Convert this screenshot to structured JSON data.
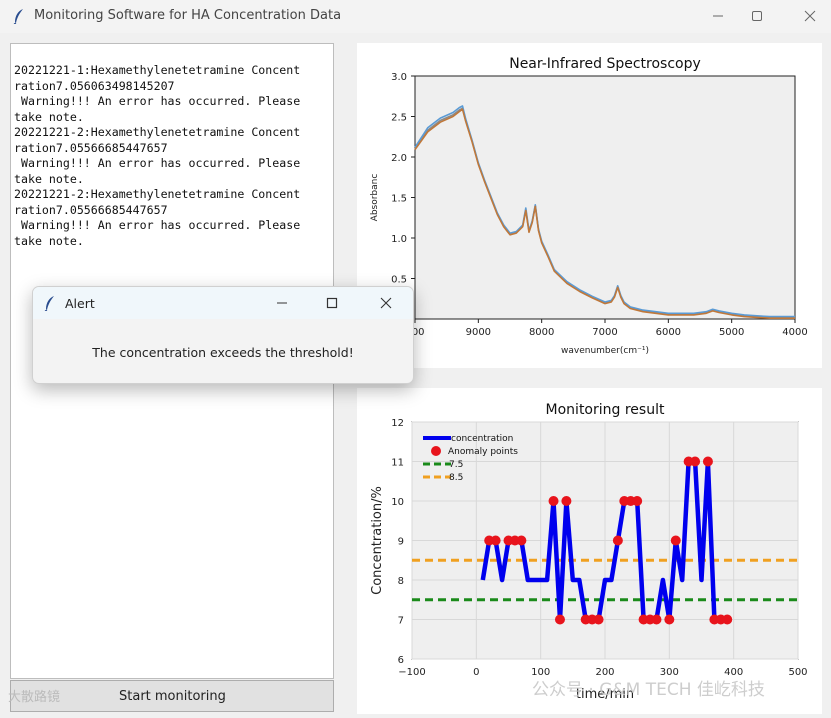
{
  "window": {
    "title": "Monitoring Software for HA Concentration Data",
    "icon": "feather-icon",
    "controls": [
      "minimize-icon",
      "maximize-icon",
      "close-icon"
    ]
  },
  "log": {
    "lines": [
      "20221221-1:Hexamethylenetetramine Concent",
      "ration7.056063498145207",
      " Warning!!! An error has occurred. Please",
      "take note.",
      "20221221-2:Hexamethylenetetramine Concent",
      "ration7.05566685447657",
      " Warning!!! An error has occurred. Please",
      "take note.",
      "20221221-2:Hexamethylenetetramine Concent",
      "ration7.05566685447657",
      " Warning!!! An error has occurred. Please",
      "take note."
    ]
  },
  "start_button": {
    "label": "Start monitoring"
  },
  "alert": {
    "title": "Alert",
    "message": "The concentration exceeds the threshold!"
  },
  "watermarks": {
    "left": "大散路镜",
    "right": "公众号 · G&M TECH 佳屹科技"
  },
  "chart_data": [
    {
      "type": "line",
      "title": "Near-Infrared Spectroscopy",
      "xlabel": "wavenumber(cm⁻¹)",
      "ylabel": "Absorbanc",
      "xlim": [
        10000,
        4000
      ],
      "ylim": [
        0,
        3.0
      ],
      "x_ticks": [
        "000",
        "9000",
        "8000",
        "7000",
        "6000",
        "5000",
        "4000"
      ],
      "y_ticks": [
        "0.5",
        "1.0",
        "1.5",
        "2.0",
        "2.5",
        "3.0"
      ],
      "grid": false,
      "colors": [
        "#8a8a8a",
        "#5b9bd5",
        "#c0783a"
      ],
      "x": [
        10000,
        9800,
        9600,
        9400,
        9300,
        9250,
        9200,
        9100,
        9000,
        8900,
        8800,
        8700,
        8600,
        8500,
        8400,
        8300,
        8250,
        8200,
        8150,
        8100,
        8050,
        8000,
        7900,
        7800,
        7600,
        7400,
        7200,
        7000,
        6900,
        6850,
        6800,
        6750,
        6700,
        6600,
        6400,
        6200,
        6000,
        5800,
        5600,
        5400,
        5300,
        5200,
        5000,
        4800,
        4600,
        4400,
        4200,
        4000
      ],
      "series": [
        {
          "values": [
            2.1,
            2.33,
            2.45,
            2.52,
            2.58,
            2.6,
            2.45,
            2.2,
            1.92,
            1.7,
            1.5,
            1.3,
            1.15,
            1.05,
            1.07,
            1.15,
            1.35,
            1.08,
            1.2,
            1.4,
            1.1,
            0.95,
            0.78,
            0.6,
            0.45,
            0.35,
            0.27,
            0.2,
            0.22,
            0.28,
            0.4,
            0.28,
            0.2,
            0.14,
            0.1,
            0.08,
            0.06,
            0.06,
            0.06,
            0.08,
            0.11,
            0.09,
            0.06,
            0.04,
            0.03,
            0.02,
            0.02,
            0.02
          ]
        },
        {
          "values": [
            2.12,
            2.36,
            2.48,
            2.55,
            2.61,
            2.63,
            2.47,
            2.21,
            1.93,
            1.71,
            1.51,
            1.31,
            1.16,
            1.06,
            1.08,
            1.16,
            1.37,
            1.09,
            1.21,
            1.41,
            1.11,
            0.96,
            0.79,
            0.61,
            0.46,
            0.36,
            0.28,
            0.21,
            0.23,
            0.29,
            0.41,
            0.29,
            0.21,
            0.15,
            0.11,
            0.09,
            0.07,
            0.07,
            0.07,
            0.09,
            0.12,
            0.1,
            0.07,
            0.05,
            0.04,
            0.03,
            0.03,
            0.03
          ]
        },
        {
          "values": [
            2.09,
            2.31,
            2.43,
            2.5,
            2.56,
            2.59,
            2.44,
            2.19,
            1.91,
            1.69,
            1.49,
            1.29,
            1.14,
            1.04,
            1.06,
            1.14,
            1.34,
            1.07,
            1.19,
            1.39,
            1.09,
            0.94,
            0.77,
            0.59,
            0.44,
            0.34,
            0.26,
            0.19,
            0.21,
            0.27,
            0.39,
            0.27,
            0.19,
            0.13,
            0.09,
            0.07,
            0.05,
            0.05,
            0.05,
            0.07,
            0.1,
            0.08,
            0.05,
            0.03,
            0.02,
            0.01,
            0.01,
            0.01
          ]
        }
      ]
    },
    {
      "type": "line",
      "title": "Monitoring result",
      "xlabel": "time/min",
      "ylabel": "Concentration/%",
      "xlim": [
        -100,
        500
      ],
      "ylim": [
        6,
        12
      ],
      "x_ticks": [
        "−100",
        "0",
        "100",
        "200",
        "300",
        "400",
        "500"
      ],
      "y_ticks": [
        "6",
        "7",
        "8",
        "9",
        "10",
        "11",
        "12"
      ],
      "grid": true,
      "legend": "top-left",
      "legend_entries": [
        "concentration",
        "Anomaly points",
        "7.5",
        "8.5"
      ],
      "thresholds": [
        {
          "name": "7.5",
          "value": 7.5,
          "color": "#1a8a1a"
        },
        {
          "name": "8.5",
          "value": 8.5,
          "color": "#f0a020"
        }
      ],
      "line_color": "#0000ee",
      "anomaly_color": "#e8141c",
      "x": [
        10,
        20,
        30,
        40,
        50,
        60,
        70,
        80,
        90,
        100,
        110,
        120,
        130,
        140,
        150,
        160,
        170,
        180,
        190,
        200,
        210,
        220,
        230,
        240,
        250,
        260,
        270,
        280,
        290,
        300,
        310,
        320,
        330,
        340,
        350,
        360,
        370,
        380,
        390
      ],
      "values": [
        8,
        9,
        9,
        8,
        9,
        9,
        9,
        8,
        8,
        8,
        8,
        10,
        7,
        10,
        8,
        8,
        7,
        7,
        7,
        8,
        8,
        9,
        10,
        10,
        10,
        7,
        7,
        7,
        8,
        7,
        9,
        8,
        11,
        11,
        8,
        11,
        7,
        7,
        7
      ],
      "anomaly_x": [
        20,
        30,
        50,
        60,
        70,
        120,
        130,
        140,
        170,
        180,
        190,
        220,
        230,
        240,
        250,
        260,
        270,
        280,
        300,
        310,
        330,
        340,
        360,
        370,
        380,
        390
      ],
      "anomaly_values": [
        9,
        9,
        9,
        9,
        9,
        10,
        7,
        10,
        7,
        7,
        7,
        9,
        10,
        10,
        10,
        7,
        7,
        7,
        7,
        9,
        11,
        11,
        11,
        7,
        7,
        7
      ]
    }
  ]
}
